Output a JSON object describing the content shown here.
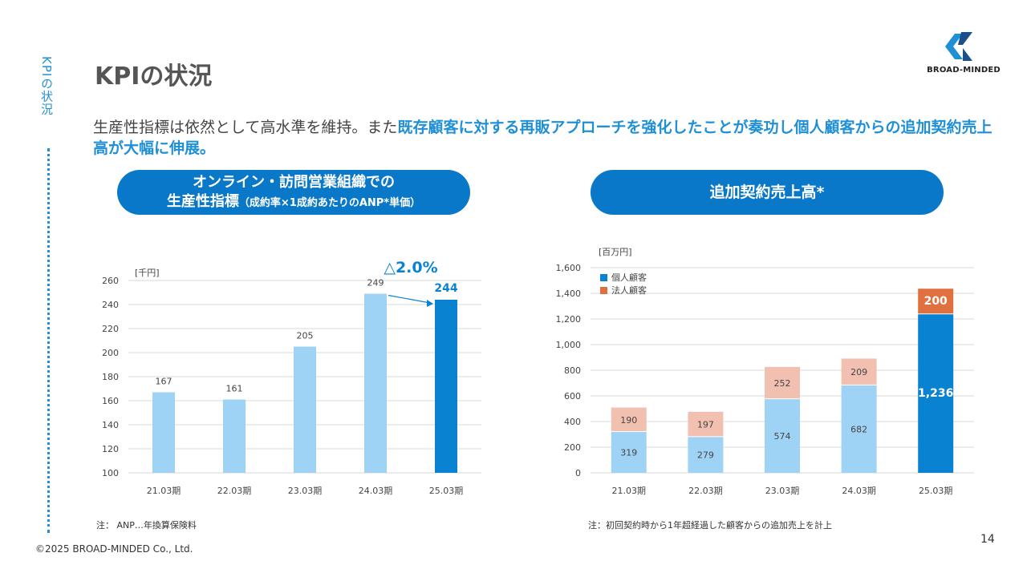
{
  "side_label": "KPIの状況",
  "title": "KPIの状況",
  "logo_text": "BROAD-MINDED",
  "lead": {
    "plain": "生産性指標は依然として高水準を維持。また",
    "highlight": "既存顧客に対する再販アプローチを強化したことが奏功し個人顧客からの追加契約売上高が大幅に伸展。"
  },
  "pill_left": {
    "line1": "オンライン・訪問営業組織での",
    "line2_main": "生産性指標",
    "line2_sub": "（成約率×1成約あたりのANP*単価）"
  },
  "pill_right": {
    "label": "追加契約売上高*"
  },
  "notes": {
    "left": "注： ANP…年換算保険料",
    "right": "注：初回契約時から1年超経過した顧客からの追加売上を計上"
  },
  "footer": "©2025 BROAD-MINDED Co., Ltd.",
  "page_number": "14",
  "colors": {
    "accent": "#0a78c8",
    "light_blue": "#9fd3f5",
    "salmon": "#f2c0b0",
    "orange": "#e07040",
    "dark_blue": "#0a82d2"
  },
  "chart_data": [
    {
      "type": "bar",
      "unit_label": "[千円]",
      "categories": [
        "21.03期",
        "22.03期",
        "23.03期",
        "24.03期",
        "25.03期"
      ],
      "values": [
        167,
        161,
        205,
        249,
        244
      ],
      "ylim": [
        100,
        260
      ],
      "yticks": [
        100,
        120,
        140,
        160,
        180,
        200,
        220,
        240,
        260
      ],
      "annotation": "△2.0%",
      "grid": true
    },
    {
      "type": "bar",
      "stacked": true,
      "unit_label": "[百万円]",
      "categories": [
        "21.03期",
        "22.03期",
        "23.03期",
        "24.03期",
        "25.03期"
      ],
      "series": [
        {
          "name": "個人顧客",
          "values": [
            319,
            279,
            574,
            682,
            1236
          ]
        },
        {
          "name": "法人顧客",
          "values": [
            190,
            197,
            252,
            209,
            200
          ]
        }
      ],
      "ylim": [
        0,
        1600
      ],
      "yticks": [
        "0",
        "200",
        "400",
        "600",
        "800",
        "1,000",
        "1,200",
        "1,400",
        "1,600"
      ],
      "value_labels": [
        [
          "319",
          "279",
          "574",
          "682",
          "1,236"
        ],
        [
          "190",
          "197",
          "252",
          "209",
          "200"
        ]
      ],
      "legend_position": "top-left",
      "grid": true
    }
  ]
}
